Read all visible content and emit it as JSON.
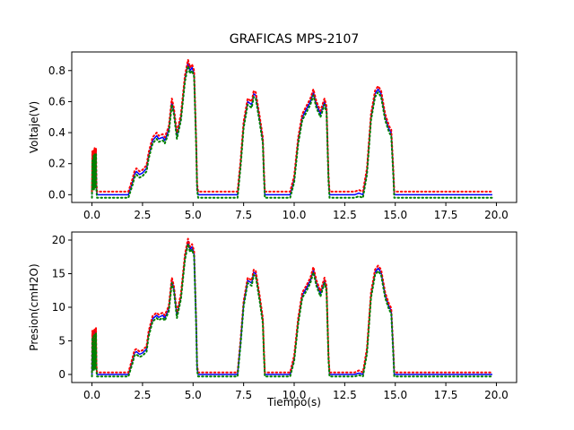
{
  "chart_data": {
    "type": "line",
    "title": "GRAFICAS MPS-2107",
    "xlabel": "Tiempo(s)",
    "x_ticks": [
      "0.0",
      "2.5",
      "5.0",
      "7.5",
      "10.0",
      "12.5",
      "15.0",
      "17.5",
      "20.0"
    ],
    "grid": false,
    "series_colors": [
      "#0000ff",
      "#ff0000",
      "#008000"
    ],
    "subplots": [
      {
        "ylabel": "Voltaje(V)",
        "ylim": [
          -0.05,
          0.92
        ],
        "xlim": [
          -1.0,
          21.0
        ],
        "y_ticks": [
          "0.0",
          "0.2",
          "0.4",
          "0.6",
          "0.8"
        ],
        "y_tick_values": [
          0.0,
          0.2,
          0.4,
          0.6,
          0.8
        ],
        "series": [
          {
            "color": "#0000ff",
            "style": "solid",
            "x": [
              0.0,
              0.02,
              0.05,
              0.08,
              0.1,
              0.13,
              0.16,
              0.2,
              0.22,
              0.25,
              1.8,
              2.0,
              2.1,
              2.2,
              2.35,
              2.5,
              2.7,
              2.8,
              3.0,
              3.2,
              3.3,
              3.5,
              3.6,
              3.8,
              3.95,
              4.05,
              4.2,
              4.4,
              4.6,
              4.75,
              4.85,
              4.95,
              5.05,
              5.15,
              5.2,
              5.25,
              7.2,
              7.35,
              7.5,
              7.7,
              7.9,
              8.0,
              8.1,
              8.3,
              8.45,
              8.5,
              8.55,
              9.8,
              10.0,
              10.2,
              10.4,
              10.6,
              10.8,
              10.95,
              11.1,
              11.3,
              11.5,
              11.6,
              11.7,
              11.75,
              13.0,
              13.2,
              13.4,
              13.6,
              13.8,
              14.0,
              14.15,
              14.3,
              14.5,
              14.7,
              14.8,
              14.9,
              14.95,
              19.8
            ],
            "y": [
              0.0,
              0.25,
              0.05,
              0.27,
              0.05,
              0.28,
              0.06,
              0.28,
              0.05,
              0.0,
              0.0,
              0.08,
              0.13,
              0.15,
              0.13,
              0.14,
              0.17,
              0.25,
              0.35,
              0.38,
              0.36,
              0.37,
              0.35,
              0.42,
              0.6,
              0.54,
              0.38,
              0.5,
              0.75,
              0.85,
              0.8,
              0.82,
              0.78,
              0.35,
              0.05,
              0.0,
              0.0,
              0.2,
              0.45,
              0.6,
              0.58,
              0.65,
              0.64,
              0.48,
              0.35,
              0.15,
              0.0,
              0.0,
              0.1,
              0.35,
              0.5,
              0.55,
              0.6,
              0.66,
              0.58,
              0.52,
              0.6,
              0.55,
              0.1,
              0.0,
              0.0,
              0.01,
              0.0,
              0.15,
              0.5,
              0.65,
              0.68,
              0.65,
              0.5,
              0.42,
              0.4,
              0.15,
              0.0,
              0.0
            ]
          },
          {
            "color": "#ff0000",
            "style": "dotted",
            "x": [
              0.0,
              0.02,
              0.05,
              0.08,
              0.1,
              0.13,
              0.16,
              0.2,
              0.22,
              0.25,
              1.8,
              2.0,
              2.1,
              2.2,
              2.35,
              2.5,
              2.7,
              2.8,
              3.0,
              3.2,
              3.3,
              3.5,
              3.6,
              3.8,
              3.95,
              4.05,
              4.2,
              4.4,
              4.6,
              4.75,
              4.85,
              4.95,
              5.05,
              5.15,
              5.2,
              5.25,
              7.2,
              7.35,
              7.5,
              7.7,
              7.9,
              8.0,
              8.1,
              8.3,
              8.45,
              8.5,
              8.55,
              9.8,
              10.0,
              10.2,
              10.4,
              10.6,
              10.8,
              10.95,
              11.1,
              11.3,
              11.5,
              11.6,
              11.7,
              11.75,
              13.0,
              13.2,
              13.4,
              13.6,
              13.8,
              14.0,
              14.15,
              14.3,
              14.5,
              14.7,
              14.8,
              14.9,
              14.95,
              19.8
            ],
            "y": [
              0.02,
              0.28,
              0.08,
              0.29,
              0.08,
              0.3,
              0.09,
              0.3,
              0.08,
              0.02,
              0.02,
              0.1,
              0.15,
              0.17,
              0.15,
              0.16,
              0.19,
              0.27,
              0.37,
              0.4,
              0.38,
              0.39,
              0.37,
              0.44,
              0.62,
              0.56,
              0.4,
              0.52,
              0.77,
              0.87,
              0.82,
              0.84,
              0.8,
              0.37,
              0.07,
              0.02,
              0.02,
              0.22,
              0.47,
              0.62,
              0.6,
              0.67,
              0.66,
              0.5,
              0.37,
              0.17,
              0.02,
              0.02,
              0.12,
              0.37,
              0.52,
              0.57,
              0.62,
              0.68,
              0.6,
              0.54,
              0.62,
              0.57,
              0.12,
              0.02,
              0.02,
              0.03,
              0.02,
              0.17,
              0.52,
              0.67,
              0.7,
              0.67,
              0.52,
              0.44,
              0.42,
              0.17,
              0.02,
              0.02
            ]
          },
          {
            "color": "#008000",
            "style": "dotted",
            "x": [
              0.0,
              0.02,
              0.05,
              0.08,
              0.1,
              0.13,
              0.16,
              0.2,
              0.22,
              0.25,
              1.8,
              2.0,
              2.1,
              2.2,
              2.35,
              2.5,
              2.7,
              2.8,
              3.0,
              3.2,
              3.3,
              3.5,
              3.6,
              3.8,
              3.95,
              4.05,
              4.2,
              4.4,
              4.6,
              4.75,
              4.85,
              4.95,
              5.05,
              5.15,
              5.2,
              5.25,
              7.2,
              7.35,
              7.5,
              7.7,
              7.9,
              8.0,
              8.1,
              8.3,
              8.45,
              8.5,
              8.55,
              9.8,
              10.0,
              10.2,
              10.4,
              10.6,
              10.8,
              10.95,
              11.1,
              11.3,
              11.5,
              11.6,
              11.7,
              11.75,
              13.0,
              13.2,
              13.4,
              13.6,
              13.8,
              14.0,
              14.15,
              14.3,
              14.5,
              14.7,
              14.8,
              14.9,
              14.95,
              19.8
            ],
            "y": [
              -0.02,
              0.22,
              0.03,
              0.25,
              0.03,
              0.26,
              0.04,
              0.26,
              0.03,
              -0.02,
              -0.02,
              0.06,
              0.11,
              0.13,
              0.11,
              0.12,
              0.15,
              0.23,
              0.33,
              0.36,
              0.34,
              0.35,
              0.33,
              0.4,
              0.58,
              0.52,
              0.36,
              0.48,
              0.73,
              0.83,
              0.78,
              0.8,
              0.76,
              0.33,
              0.03,
              -0.02,
              -0.02,
              0.18,
              0.43,
              0.58,
              0.56,
              0.63,
              0.62,
              0.46,
              0.33,
              0.13,
              -0.02,
              -0.02,
              0.08,
              0.33,
              0.48,
              0.53,
              0.58,
              0.64,
              0.56,
              0.5,
              0.58,
              0.53,
              0.08,
              -0.02,
              -0.02,
              -0.01,
              -0.02,
              0.13,
              0.48,
              0.63,
              0.66,
              0.63,
              0.48,
              0.4,
              0.38,
              0.13,
              -0.02,
              -0.02
            ]
          }
        ]
      },
      {
        "ylabel": "Presion(cmH2O)",
        "ylim": [
          -1.2,
          21.2
        ],
        "xlim": [
          -1.0,
          21.0
        ],
        "y_ticks": [
          "0",
          "5",
          "10",
          "15",
          "20"
        ],
        "y_tick_values": [
          0,
          5,
          10,
          15,
          20
        ],
        "series": [
          {
            "color": "#0000ff",
            "style": "solid",
            "x": [
              0.0,
              0.02,
              0.05,
              0.08,
              0.1,
              0.13,
              0.16,
              0.2,
              0.22,
              0.25,
              1.8,
              2.0,
              2.1,
              2.2,
              2.35,
              2.5,
              2.7,
              2.8,
              3.0,
              3.2,
              3.3,
              3.5,
              3.6,
              3.8,
              3.95,
              4.05,
              4.2,
              4.4,
              4.6,
              4.75,
              4.85,
              4.95,
              5.05,
              5.15,
              5.2,
              5.25,
              7.2,
              7.35,
              7.5,
              7.7,
              7.9,
              8.0,
              8.1,
              8.3,
              8.45,
              8.5,
              8.55,
              9.8,
              10.0,
              10.2,
              10.4,
              10.6,
              10.8,
              10.95,
              11.1,
              11.3,
              11.5,
              11.6,
              11.7,
              11.75,
              13.0,
              13.2,
              13.4,
              13.6,
              13.8,
              14.0,
              14.15,
              14.3,
              14.5,
              14.7,
              14.8,
              14.9,
              14.95,
              19.8
            ],
            "y": [
              0.0,
              6.0,
              1.0,
              6.3,
              1.0,
              6.5,
              1.2,
              6.5,
              1.0,
              0.0,
              0.0,
              2.0,
              3.2,
              3.4,
              3.0,
              3.2,
              3.8,
              6.0,
              8.3,
              8.8,
              8.5,
              8.8,
              8.4,
              9.8,
              14.0,
              12.8,
              8.8,
              11.6,
              17.5,
              19.8,
              18.6,
              19.0,
              18.0,
              8.0,
              1.0,
              0.0,
              0.0,
              4.8,
              10.5,
              14.0,
              13.6,
              15.2,
              15.0,
              11.2,
              8.0,
              3.5,
              0.0,
              0.0,
              2.4,
              8.0,
              11.8,
              12.8,
              14.0,
              15.6,
              13.6,
              12.0,
              14.0,
              12.8,
              2.4,
              0.0,
              0.0,
              0.2,
              0.0,
              3.5,
              11.8,
              15.2,
              15.8,
              15.2,
              11.8,
              10.0,
              9.5,
              3.5,
              0.0,
              0.0
            ]
          },
          {
            "color": "#ff0000",
            "style": "dotted",
            "x": [
              0.0,
              0.02,
              0.05,
              0.08,
              0.1,
              0.13,
              0.16,
              0.2,
              0.22,
              0.25,
              1.8,
              2.0,
              2.1,
              2.2,
              2.35,
              2.5,
              2.7,
              2.8,
              3.0,
              3.2,
              3.3,
              3.5,
              3.6,
              3.8,
              3.95,
              4.05,
              4.2,
              4.4,
              4.6,
              4.75,
              4.85,
              4.95,
              5.05,
              5.15,
              5.2,
              5.25,
              7.2,
              7.35,
              7.5,
              7.7,
              7.9,
              8.0,
              8.1,
              8.3,
              8.45,
              8.5,
              8.55,
              9.8,
              10.0,
              10.2,
              10.4,
              10.6,
              10.8,
              10.95,
              11.1,
              11.3,
              11.5,
              11.6,
              11.7,
              11.75,
              13.0,
              13.2,
              13.4,
              13.6,
              13.8,
              14.0,
              14.15,
              14.3,
              14.5,
              14.7,
              14.8,
              14.9,
              14.95,
              19.8
            ],
            "y": [
              0.3,
              6.5,
              1.4,
              6.7,
              1.4,
              6.9,
              1.6,
              6.9,
              1.4,
              0.3,
              0.3,
              2.4,
              3.6,
              3.8,
              3.4,
              3.6,
              4.2,
              6.4,
              8.7,
              9.2,
              8.9,
              9.2,
              8.8,
              10.2,
              14.4,
              13.2,
              9.2,
              12.0,
              17.9,
              20.2,
              19.0,
              19.4,
              18.4,
              8.4,
              1.4,
              0.3,
              0.3,
              5.2,
              10.9,
              14.4,
              14.0,
              15.6,
              15.4,
              11.6,
              8.4,
              3.9,
              0.3,
              0.3,
              2.8,
              8.4,
              12.2,
              13.2,
              14.4,
              16.0,
              14.0,
              12.4,
              14.4,
              13.2,
              2.8,
              0.3,
              0.3,
              0.6,
              0.3,
              3.9,
              12.2,
              15.6,
              16.2,
              15.6,
              12.2,
              10.4,
              9.9,
              3.9,
              0.3,
              0.3
            ]
          },
          {
            "color": "#008000",
            "style": "dotted",
            "x": [
              0.0,
              0.02,
              0.05,
              0.08,
              0.1,
              0.13,
              0.16,
              0.2,
              0.22,
              0.25,
              1.8,
              2.0,
              2.1,
              2.2,
              2.35,
              2.5,
              2.7,
              2.8,
              3.0,
              3.2,
              3.3,
              3.5,
              3.6,
              3.8,
              3.95,
              4.05,
              4.2,
              4.4,
              4.6,
              4.75,
              4.85,
              4.95,
              5.05,
              5.15,
              5.2,
              5.25,
              7.2,
              7.35,
              7.5,
              7.7,
              7.9,
              8.0,
              8.1,
              8.3,
              8.45,
              8.5,
              8.55,
              9.8,
              10.0,
              10.2,
              10.4,
              10.6,
              10.8,
              10.95,
              11.1,
              11.3,
              11.5,
              11.6,
              11.7,
              11.75,
              13.0,
              13.2,
              13.4,
              13.6,
              13.8,
              14.0,
              14.15,
              14.3,
              14.5,
              14.7,
              14.8,
              14.9,
              14.95,
              19.8
            ],
            "y": [
              -0.3,
              5.5,
              0.6,
              5.9,
              0.6,
              6.1,
              0.8,
              6.1,
              0.6,
              -0.3,
              -0.3,
              1.6,
              2.8,
              3.0,
              2.6,
              2.8,
              3.4,
              5.6,
              7.9,
              8.4,
              8.1,
              8.4,
              8.0,
              9.4,
              13.6,
              12.4,
              8.4,
              11.2,
              17.1,
              19.4,
              18.2,
              18.6,
              17.6,
              7.6,
              0.6,
              -0.3,
              -0.3,
              4.4,
              10.1,
              13.6,
              13.2,
              14.8,
              14.6,
              10.8,
              7.6,
              3.1,
              -0.3,
              -0.3,
              2.0,
              7.6,
              11.4,
              12.4,
              13.6,
              15.2,
              13.2,
              11.6,
              13.6,
              12.4,
              2.0,
              -0.3,
              -0.3,
              -0.1,
              -0.3,
              3.1,
              11.4,
              14.8,
              15.4,
              14.8,
              11.4,
              9.6,
              9.1,
              3.1,
              -0.3,
              -0.3
            ]
          }
        ]
      }
    ]
  }
}
